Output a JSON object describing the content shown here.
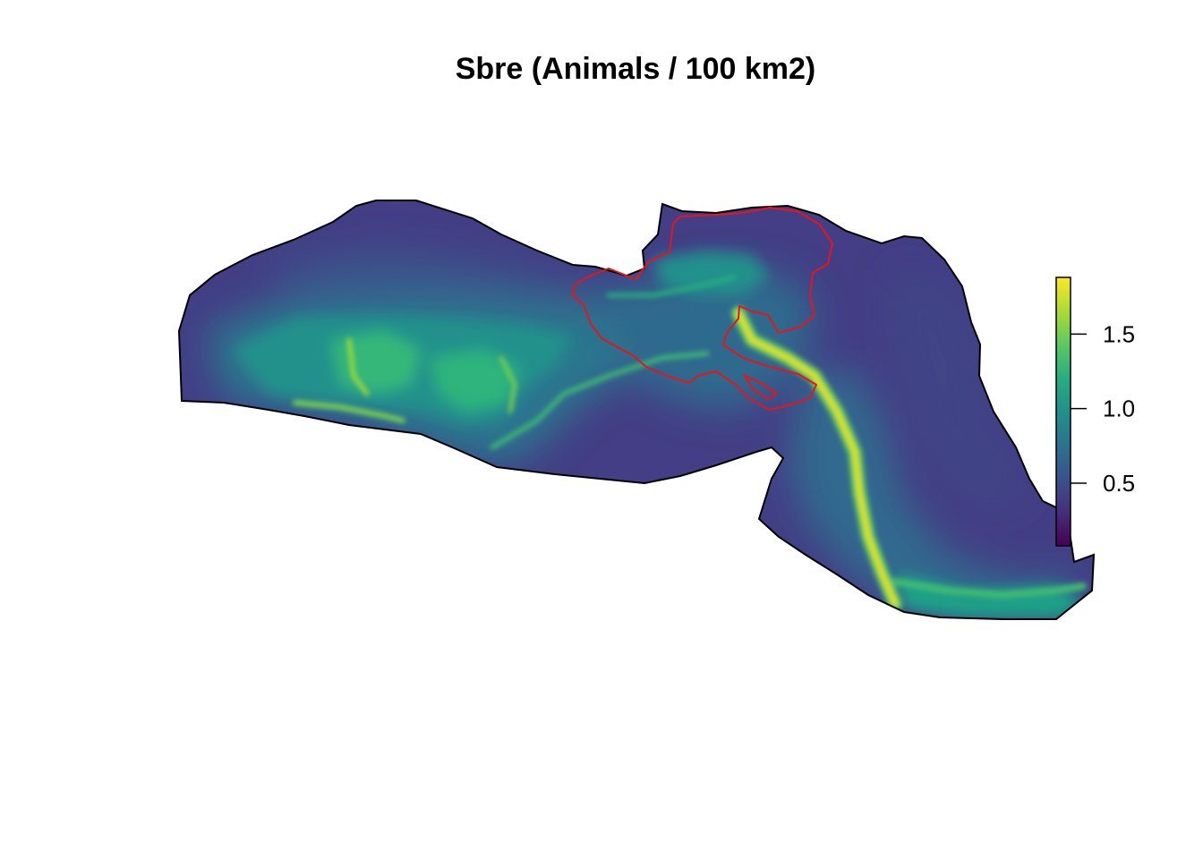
{
  "title": "Sbre (Animals / 100 km2)",
  "colors": {
    "background": "#ffffff",
    "boundary_outline": "#000000",
    "study_area_outline": "#e8141a",
    "viridis": [
      "#440154",
      "#472d7b",
      "#3b528b",
      "#2c728e",
      "#21908c",
      "#27ad81",
      "#5dc863",
      "#aadc32",
      "#fde725"
    ]
  },
  "colorbar": {
    "min": 0.08,
    "max": 1.88,
    "ticks": [
      {
        "value": 1.5,
        "label": "1.5"
      },
      {
        "value": 1.0,
        "label": "1.0"
      },
      {
        "value": 0.5,
        "label": "0.5"
      }
    ]
  },
  "map": {
    "layer": "density surface",
    "background_level": 0.35,
    "features": [
      "high-density band along western shelf",
      "high-density ridge along southern canyon",
      "outlined management area"
    ]
  }
}
